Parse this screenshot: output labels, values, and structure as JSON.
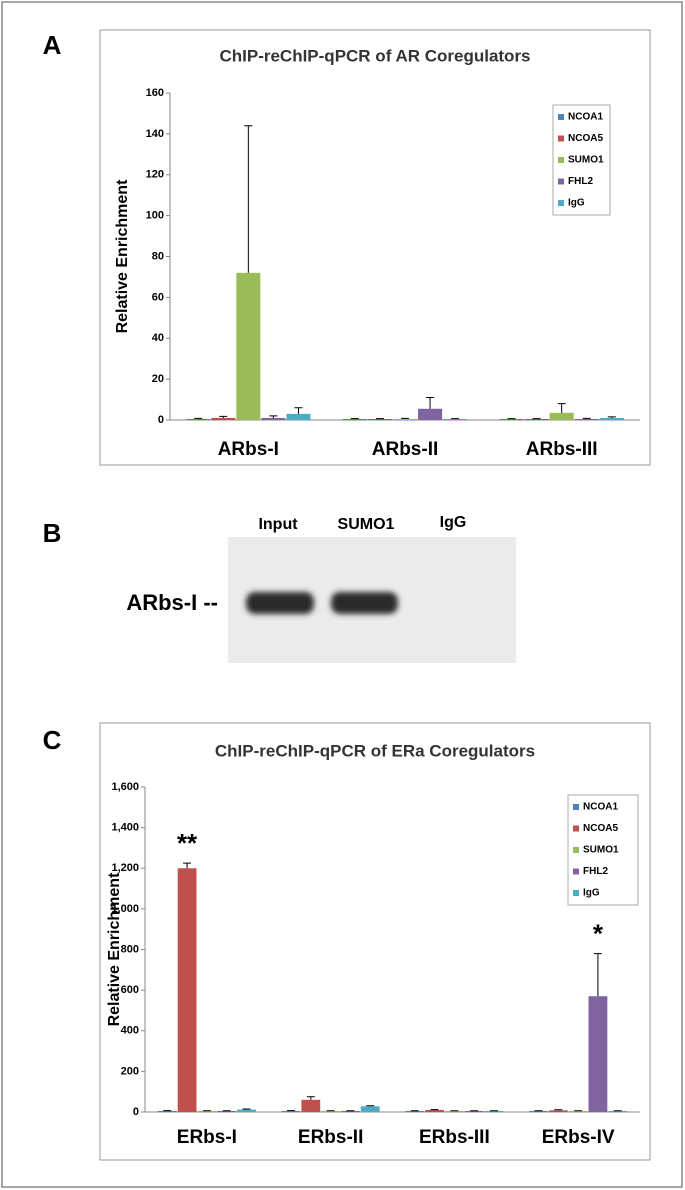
{
  "panels": [
    "A",
    "B",
    "C"
  ],
  "gel": {
    "lanes": [
      "Input",
      "SUMO1",
      "IgG"
    ],
    "band_label": "ARbs-I --"
  },
  "chart_data": [
    {
      "type": "bar",
      "title": "ChIP-reChIP-qPCR of AR Coregulators",
      "ylabel": "Relative Enrichment",
      "categories": [
        "ARbs-I",
        "ARbs-II",
        "ARbs-III"
      ],
      "ylim": [
        0,
        160
      ],
      "yticks": [
        0,
        20,
        40,
        60,
        80,
        100,
        120,
        140,
        160
      ],
      "series": [
        {
          "name": "NCOA1",
          "color": "#4f81bd",
          "values": [
            0.5,
            0.5,
            0.5
          ],
          "errors": [
            0.3,
            0.2,
            0.2
          ]
        },
        {
          "name": "NCOA5",
          "color": "#c0504d",
          "values": [
            1,
            0.5,
            0.5
          ],
          "errors": [
            0.8,
            0.2,
            0.2
          ]
        },
        {
          "name": "SUMO1",
          "color": "#9bbb59",
          "values": [
            72,
            0.5,
            3.5
          ],
          "errors": [
            72,
            0.3,
            4.5
          ]
        },
        {
          "name": "FHL2",
          "color": "#8064a2",
          "values": [
            1,
            5.5,
            0.5
          ],
          "errors": [
            1,
            5.5,
            0.3
          ]
        },
        {
          "name": "IgG",
          "color": "#4bacc6",
          "values": [
            3,
            0.5,
            1
          ],
          "errors": [
            3,
            0.2,
            0.5
          ]
        }
      ],
      "legend": "upper right",
      "annotations": []
    },
    {
      "type": "bar",
      "title": "ChIP-reChIP-qPCR of ERa Coregulators",
      "ylabel": "Relative Enrichment",
      "categories": [
        "ERbs-I",
        "ERbs-II",
        "ERbs-III",
        "ERbs-IV"
      ],
      "ylim": [
        0,
        1600
      ],
      "yticks": [
        0,
        200,
        400,
        600,
        800,
        {
          "value": 1000,
          "label": "1,000"
        },
        {
          "value": 1200,
          "label": "1,200"
        },
        {
          "value": 1400,
          "label": "1,400"
        },
        {
          "value": 1600,
          "label": "1,600"
        }
      ],
      "series": [
        {
          "name": "NCOA1",
          "color": "#4f81bd",
          "values": [
            5,
            5,
            5,
            5
          ],
          "errors": [
            2,
            2,
            1,
            1
          ]
        },
        {
          "name": "NCOA5",
          "color": "#c0504d",
          "values": [
            1200,
            60,
            10,
            8
          ],
          "errors": [
            25,
            15,
            2,
            3
          ]
        },
        {
          "name": "SUMO1",
          "color": "#9bbb59",
          "values": [
            5,
            5,
            5,
            5
          ],
          "errors": [
            1,
            1,
            1,
            1
          ]
        },
        {
          "name": "FHL2",
          "color": "#8064a2",
          "values": [
            5,
            5,
            5,
            570
          ],
          "errors": [
            1,
            1,
            1,
            210
          ]
        },
        {
          "name": "IgG",
          "color": "#4bacc6",
          "values": [
            12,
            28,
            5,
            5
          ],
          "errors": [
            3,
            3,
            1,
            1
          ]
        }
      ],
      "legend": "upper right",
      "annotations": [
        {
          "text": "**"
        },
        {
          "text": "*"
        }
      ]
    }
  ]
}
